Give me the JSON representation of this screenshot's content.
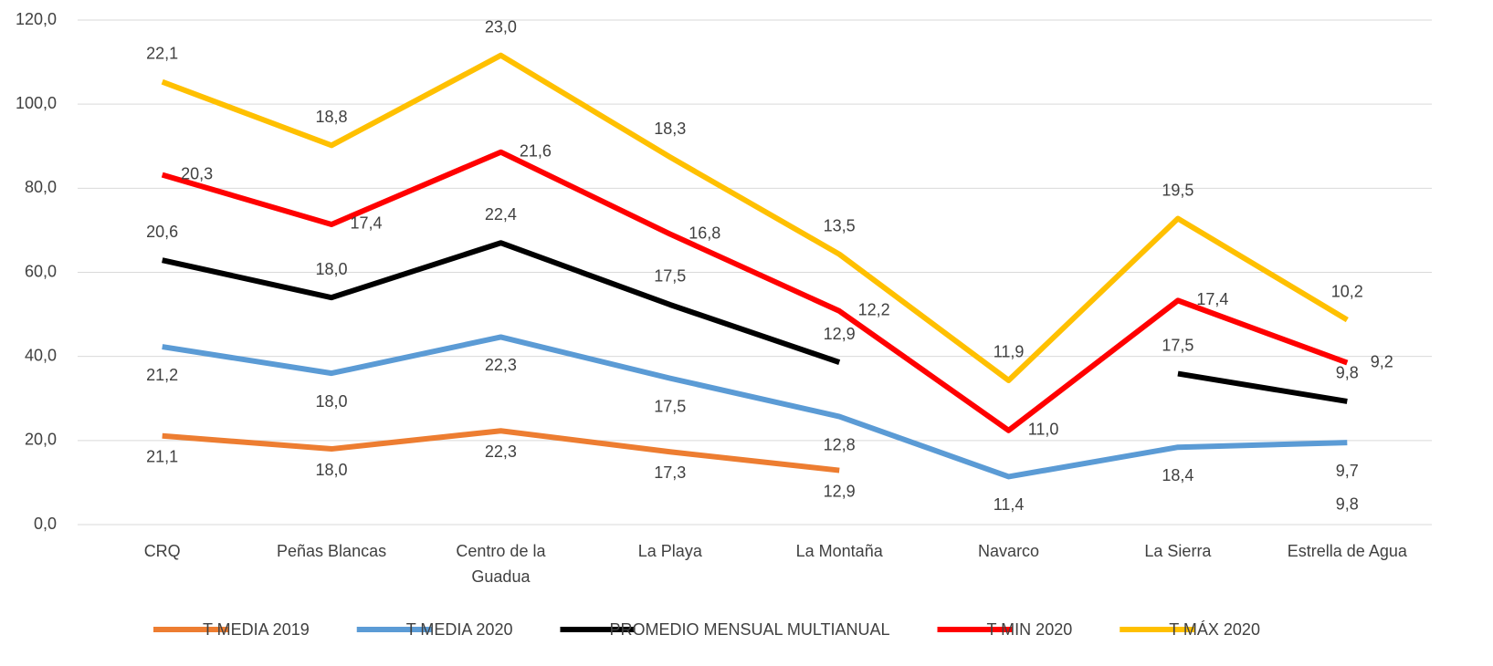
{
  "chart_data": {
    "type": "stacked-line",
    "categories": [
      "CRQ",
      "Peñas Blancas",
      "Centro de la Guadua",
      "La Playa",
      "La Montaña",
      "Navarco",
      "La Sierra",
      "Estrella de Agua"
    ],
    "series": [
      {
        "name": "T MEDIA 2019",
        "color": "#ed7d31",
        "values": [
          21.1,
          18.0,
          22.3,
          17.3,
          12.9,
          null,
          null,
          9.8
        ],
        "value_labels": [
          "21,1",
          "18,0",
          "22,3",
          "17,3",
          "12,9",
          null,
          null,
          "9,8"
        ]
      },
      {
        "name": "T MEDIA 2020",
        "color": "#5b9bd5",
        "values": [
          21.2,
          18.0,
          22.3,
          17.5,
          12.8,
          11.4,
          18.4,
          9.7
        ],
        "value_labels": [
          "21,2",
          "18,0",
          "22,3",
          "17,5",
          "12,8",
          "11,4",
          "18,4",
          "9,7"
        ]
      },
      {
        "name": "PROMEDIO MENSUAL MULTIANUAL",
        "color": "#000000",
        "values": [
          20.6,
          18.0,
          22.4,
          17.5,
          12.9,
          null,
          17.5,
          9.8
        ],
        "value_labels": [
          "20,6",
          "18,0",
          "22,4",
          "17,5",
          "12,9",
          null,
          "17,5",
          "9,8"
        ]
      },
      {
        "name": "T MIN 2020",
        "color": "#ff0000",
        "values": [
          20.3,
          17.4,
          21.6,
          16.8,
          12.2,
          11.0,
          17.4,
          9.2
        ],
        "value_labels": [
          "20,3",
          "17,4",
          "21,6",
          "16,8",
          "12,2",
          "11,0",
          "17,4",
          "9,2"
        ]
      },
      {
        "name": "T MÁX 2020",
        "color": "#ffc000",
        "values": [
          22.1,
          18.8,
          23.0,
          18.3,
          13.5,
          11.9,
          19.5,
          10.2
        ],
        "value_labels": [
          "22,1",
          "18,8",
          "23,0",
          "18,3",
          "13,5",
          "11,9",
          "19,5",
          "10,2"
        ]
      }
    ],
    "ylim": [
      0,
      120
    ],
    "yticks": [
      {
        "value": 0,
        "label": "0,0"
      },
      {
        "value": 20,
        "label": "20,0"
      },
      {
        "value": 40,
        "label": "40,0"
      },
      {
        "value": 60,
        "label": "60,0"
      },
      {
        "value": 80,
        "label": "80,0"
      },
      {
        "value": 100,
        "label": "100,0"
      },
      {
        "value": 120,
        "label": "120,0"
      }
    ],
    "grid": true,
    "legend": "bottom"
  }
}
